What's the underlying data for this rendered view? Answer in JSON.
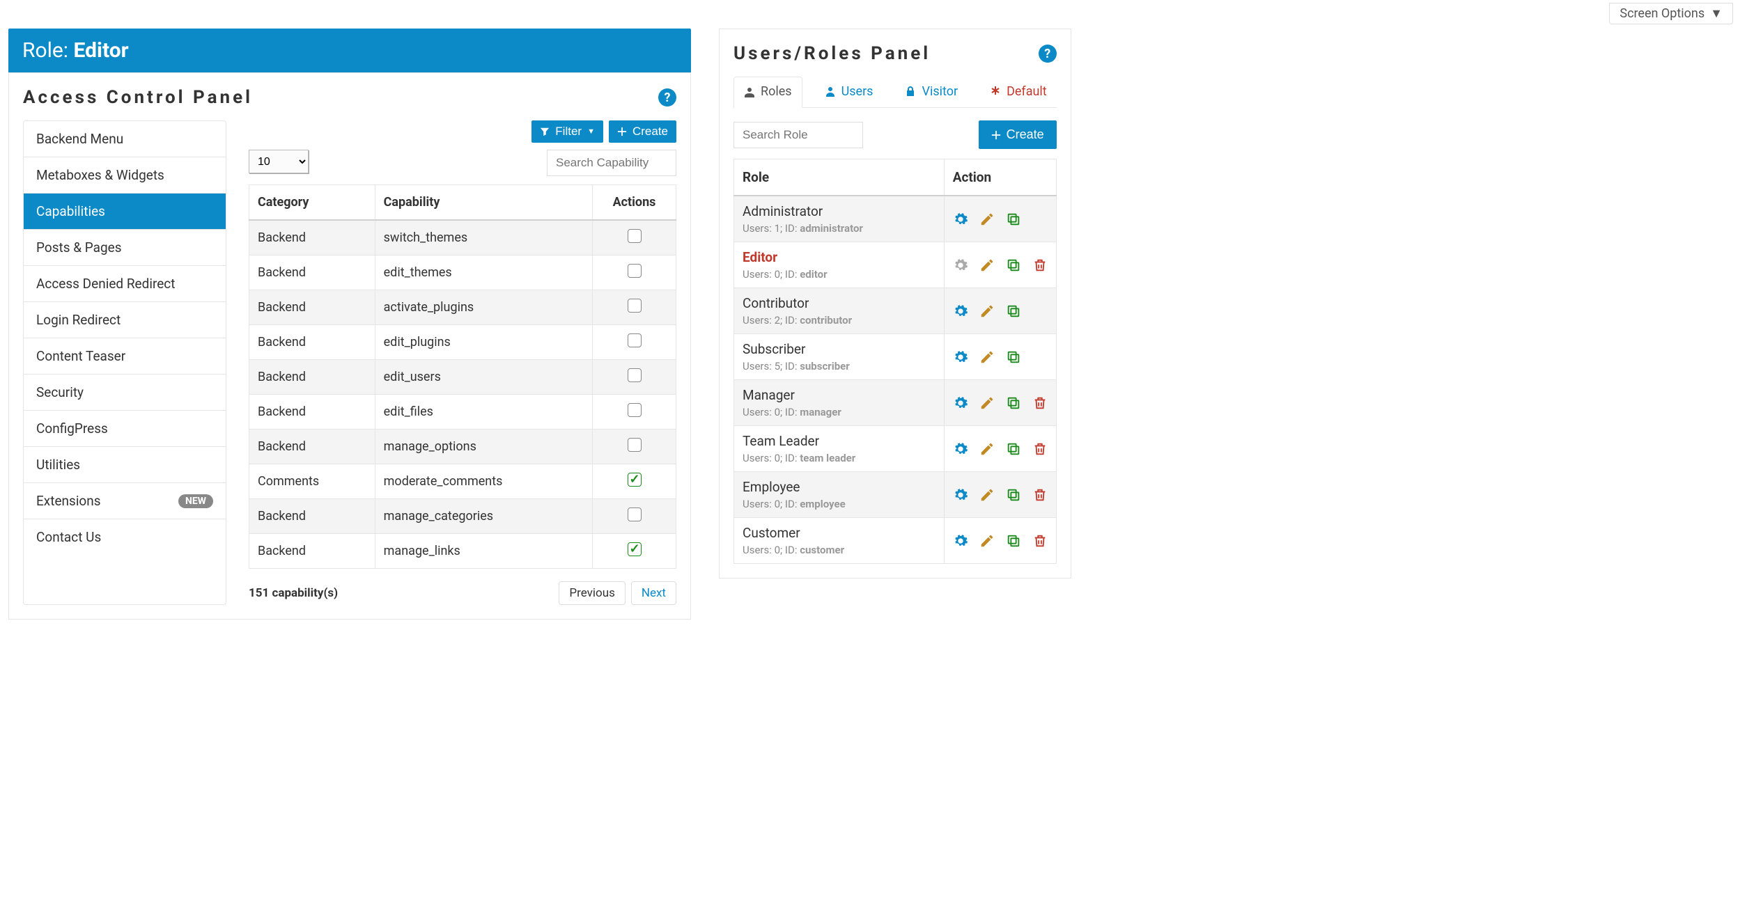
{
  "screen_options_label": "Screen Options",
  "title_bar": {
    "label": "Role:",
    "name": "Editor"
  },
  "access_panel": {
    "title": "Access Control Panel",
    "menu": [
      {
        "label": "Backend Menu"
      },
      {
        "label": "Metaboxes & Widgets"
      },
      {
        "label": "Capabilities",
        "active": true
      },
      {
        "label": "Posts & Pages"
      },
      {
        "label": "Access Denied Redirect"
      },
      {
        "label": "Login Redirect"
      },
      {
        "label": "Content Teaser"
      },
      {
        "label": "Security"
      },
      {
        "label": "ConfigPress"
      },
      {
        "label": "Utilities"
      },
      {
        "label": "Extensions",
        "badge": "NEW"
      },
      {
        "label": "Contact Us"
      }
    ],
    "toolbar": {
      "filter": "Filter",
      "create": "Create"
    },
    "page_size_value": "10",
    "search_placeholder": "Search Capability",
    "columns": {
      "category": "Category",
      "capability": "Capability",
      "actions": "Actions"
    },
    "rows": [
      {
        "category": "Backend",
        "capability": "switch_themes",
        "checked": false
      },
      {
        "category": "Backend",
        "capability": "edit_themes",
        "checked": false
      },
      {
        "category": "Backend",
        "capability": "activate_plugins",
        "checked": false
      },
      {
        "category": "Backend",
        "capability": "edit_plugins",
        "checked": false
      },
      {
        "category": "Backend",
        "capability": "edit_users",
        "checked": false
      },
      {
        "category": "Backend",
        "capability": "edit_files",
        "checked": false
      },
      {
        "category": "Backend",
        "capability": "manage_options",
        "checked": false
      },
      {
        "category": "Comments",
        "capability": "moderate_comments",
        "checked": true
      },
      {
        "category": "Backend",
        "capability": "manage_categories",
        "checked": false
      },
      {
        "category": "Backend",
        "capability": "manage_links",
        "checked": true
      }
    ],
    "count_text": "151 capability(s)",
    "pager": {
      "previous": "Previous",
      "next": "Next"
    }
  },
  "users_panel": {
    "title": "Users/Roles Panel",
    "tabs": {
      "roles": "Roles",
      "users": "Users",
      "visitor": "Visitor",
      "default": "Default"
    },
    "search_placeholder": "Search Role",
    "create_label": "Create",
    "columns": {
      "role": "Role",
      "action": "Action"
    },
    "roles": [
      {
        "name": "Administrator",
        "users": 1,
        "id": "administrator",
        "selected": false,
        "deletable": false
      },
      {
        "name": "Editor",
        "users": 0,
        "id": "editor",
        "selected": true,
        "deletable": true
      },
      {
        "name": "Contributor",
        "users": 2,
        "id": "contributor",
        "selected": false,
        "deletable": false
      },
      {
        "name": "Subscriber",
        "users": 5,
        "id": "subscriber",
        "selected": false,
        "deletable": false
      },
      {
        "name": "Manager",
        "users": 0,
        "id": "manager",
        "selected": false,
        "deletable": true
      },
      {
        "name": "Team Leader",
        "users": 0,
        "id": "team leader",
        "selected": false,
        "deletable": true
      },
      {
        "name": "Employee",
        "users": 0,
        "id": "employee",
        "selected": false,
        "deletable": true
      },
      {
        "name": "Customer",
        "users": 0,
        "id": "customer",
        "selected": false,
        "deletable": true
      }
    ],
    "meta_labels": {
      "users": "Users:",
      "id": "ID:"
    }
  },
  "colors": {
    "primary": "#0b8ac7",
    "danger": "#c0392b",
    "success": "#1a8b1a",
    "warn": "#c28a24"
  }
}
